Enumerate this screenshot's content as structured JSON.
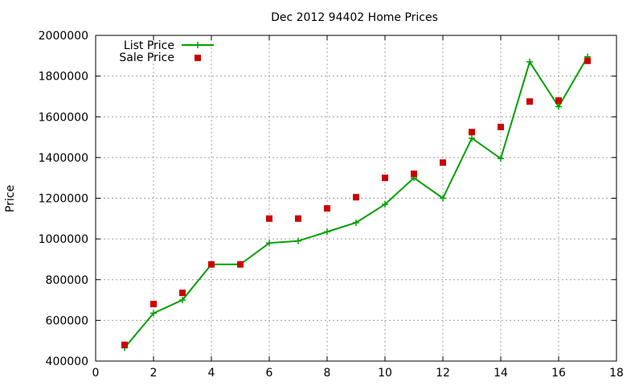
{
  "chart_data": {
    "type": "line",
    "title": "Dec 2012 94402 Home Prices",
    "xlabel": "",
    "ylabel": "Price",
    "xlim": [
      0,
      18
    ],
    "ylim": [
      400000,
      2000000
    ],
    "xticks": [
      0,
      2,
      4,
      6,
      8,
      10,
      12,
      14,
      16,
      18
    ],
    "yticks": [
      400000,
      600000,
      800000,
      1000000,
      1200000,
      1400000,
      1600000,
      1800000,
      2000000
    ],
    "grid": true,
    "legend_position": "top-left",
    "x": [
      1,
      2,
      3,
      4,
      5,
      6,
      7,
      8,
      9,
      10,
      11,
      12,
      13,
      14,
      15,
      16,
      17
    ],
    "series": [
      {
        "name": "List Price",
        "style": "line+cross",
        "color": "#00a000",
        "values": [
          465000,
          635000,
          700000,
          875000,
          875000,
          980000,
          990000,
          1035000,
          1080000,
          1170000,
          1300000,
          1200000,
          1495000,
          1395000,
          1870000,
          1650000,
          1895000
        ]
      },
      {
        "name": "Sale Price",
        "style": "square",
        "color": "#cc0000",
        "values": [
          480000,
          680000,
          735000,
          875000,
          875000,
          1100000,
          1100000,
          1150000,
          1205000,
          1300000,
          1320000,
          1375000,
          1525000,
          1550000,
          1675000,
          1680000,
          1875000
        ]
      }
    ]
  }
}
